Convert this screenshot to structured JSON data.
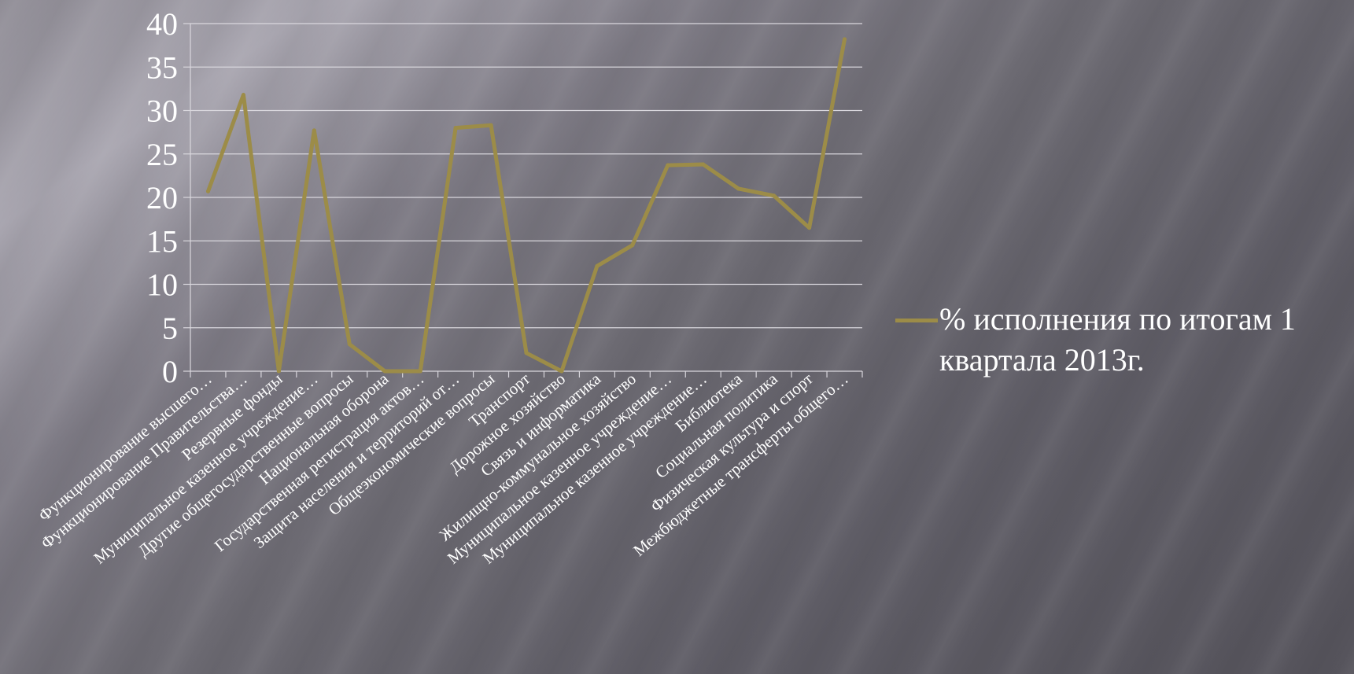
{
  "chart_data": {
    "type": "line",
    "title": "",
    "xlabel": "",
    "ylabel": "",
    "ylim": [
      0,
      40
    ],
    "yticks": [
      "0",
      "5",
      "10",
      "15",
      "20",
      "25",
      "30",
      "35",
      "40"
    ],
    "grid": true,
    "legend_position": "right",
    "categories": [
      "Функционирование высшего…",
      "Функционирование Правительства…",
      "Резервные фонды",
      "Муниципальное казенное учреждение…",
      "Другие общегосударственные вопросы",
      "Национальная оборона",
      "Государственная регистрация актов…",
      "Защита населения и территорий от…",
      "Общеэкономические вопросы",
      "Транспорт",
      "Дорожное хозяйство",
      "Связь и информатика",
      "Жилищно-коммунальное хозяйство",
      "Муниципальное казенное учреждение…",
      "Муниципальное казенное учреждение…",
      "Библиотека",
      "Социальная политика",
      "Физическая культура и спорт",
      "Межбюджетные трансферты общего…"
    ],
    "series": [
      {
        "name": "% исполнения по итогам 1 квартала 2013г.",
        "color": "#9c8c48",
        "values": [
          20.7,
          31.8,
          0,
          27.7,
          3.1,
          0,
          0,
          28.0,
          28.3,
          2.1,
          0,
          12.1,
          14.5,
          23.7,
          23.8,
          21.0,
          20.2,
          16.5,
          38.2
        ]
      }
    ]
  }
}
